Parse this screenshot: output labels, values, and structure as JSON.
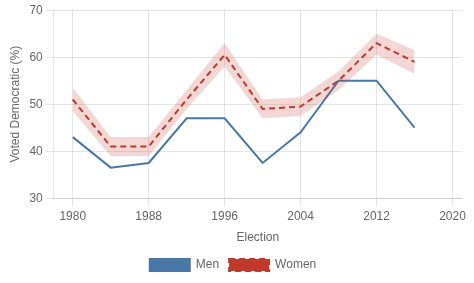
{
  "chart_data": {
    "type": "line",
    "x_label": "Election",
    "y_label": "Voted Democratic (%)",
    "x": [
      1980,
      1984,
      1988,
      1992,
      1996,
      2000,
      2004,
      2008,
      2012,
      2016
    ],
    "series": [
      {
        "name": "Men",
        "color": "#4878a8",
        "line_style": "solid",
        "values": [
          43,
          36.5,
          37.5,
          47,
          47,
          37.5,
          44,
          55,
          55,
          45
        ]
      },
      {
        "name": "Women",
        "color": "#c0392b",
        "line_style": "dashed",
        "values": [
          51,
          41,
          41,
          51,
          60.5,
          49,
          49.5,
          55,
          63,
          59
        ],
        "lower": [
          48.5,
          39,
          39,
          49,
          58,
          47,
          47.5,
          53,
          60.5,
          56.5
        ],
        "upper": [
          53.5,
          43,
          43,
          53,
          63,
          51,
          51.5,
          57,
          65,
          61.5
        ]
      }
    ],
    "xlim": [
      1978,
      2021
    ],
    "ylim": [
      30,
      70
    ],
    "xticks": [
      1980,
      1988,
      1996,
      2004,
      2012,
      2020
    ],
    "yticks": [
      30,
      40,
      50,
      60,
      70
    ],
    "grid": true,
    "legend": "bottom"
  }
}
